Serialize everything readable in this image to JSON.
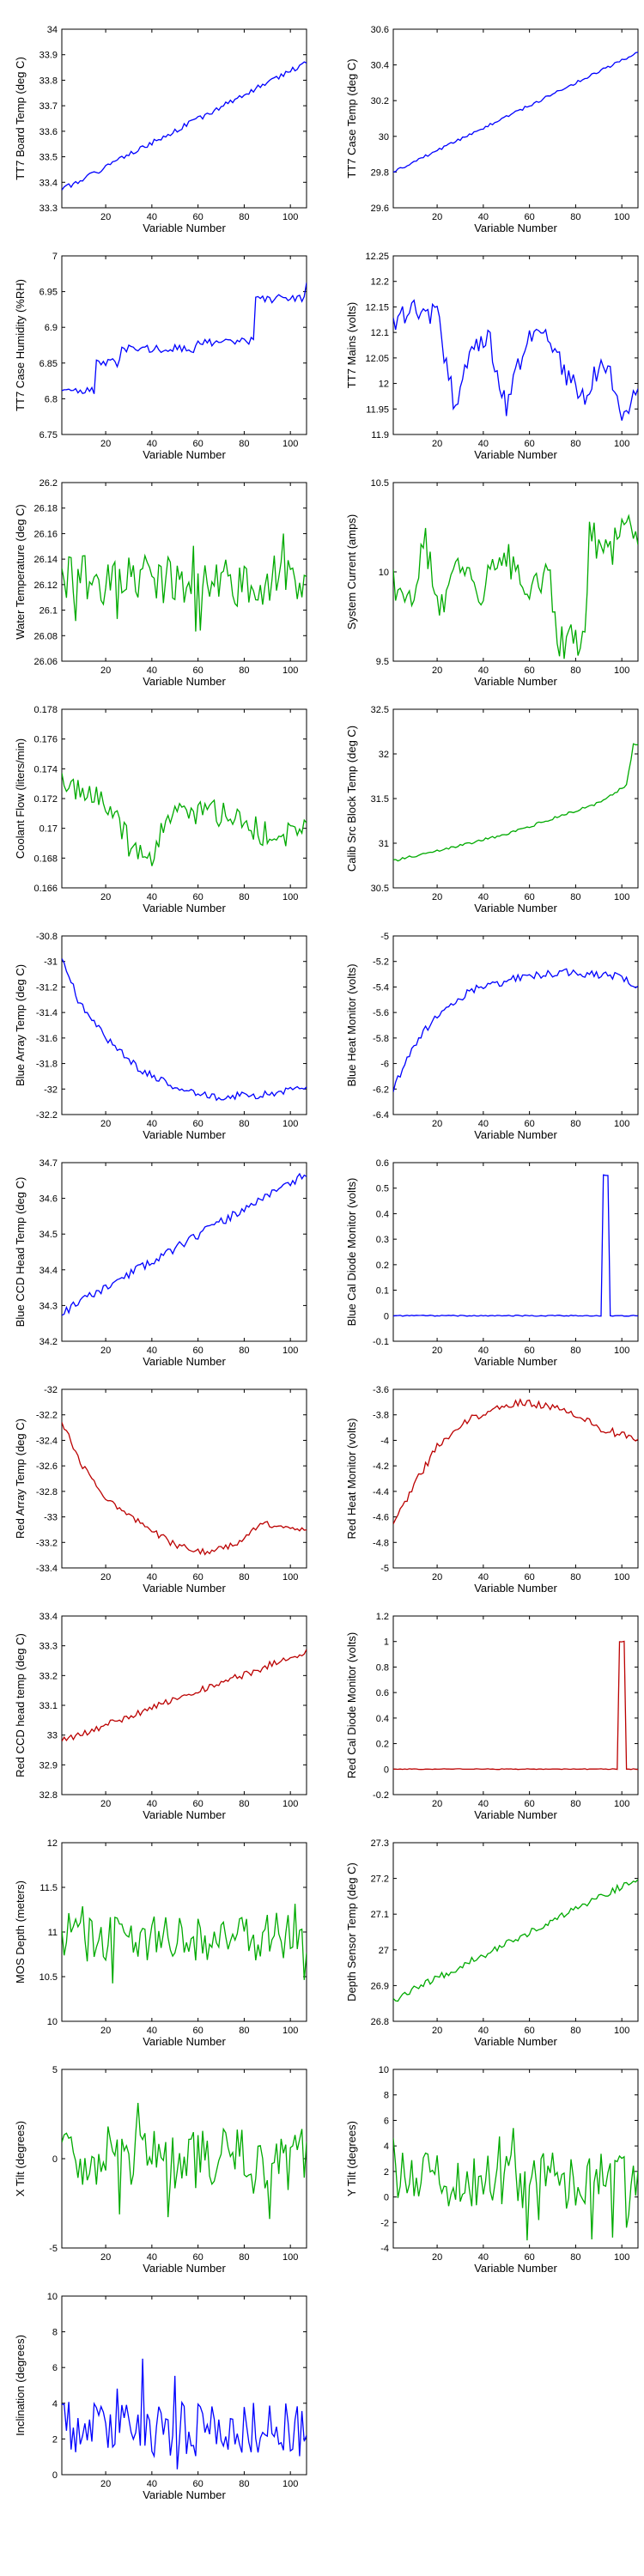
{
  "chart_data": [
    {
      "type": "line",
      "xlabel": "Variable Number",
      "ylabel": "TT7 Board Temp (deg C)",
      "color": "#0000ff",
      "xlim": [
        1,
        107
      ],
      "xticks": [
        20,
        40,
        60,
        80,
        100
      ],
      "ylim": [
        33.3,
        34.0
      ],
      "yticks": [
        "33.3",
        "33.4",
        "33.5",
        "33.6",
        "33.7",
        "33.8",
        "33.9",
        "34"
      ],
      "shape": "ramp",
      "params": {
        "start": 33.37,
        "end": 33.87,
        "noise": 0.01
      },
      "seed": 1
    },
    {
      "type": "line",
      "xlabel": "Variable Number",
      "ylabel": "TT7 Case Temp (deg C)",
      "color": "#0000ff",
      "xlim": [
        1,
        107
      ],
      "xticks": [
        20,
        40,
        60,
        80,
        100
      ],
      "ylim": [
        29.6,
        30.6
      ],
      "yticks": [
        "29.6",
        "29.8",
        "30",
        "30.2",
        "30.4",
        "30.6"
      ],
      "shape": "ramp",
      "params": {
        "start": 29.8,
        "end": 30.47,
        "noise": 0.008
      },
      "seed": 2
    },
    {
      "type": "line",
      "xlabel": "Variable Number",
      "ylabel": "TT7 Case Humidity (%RH)",
      "color": "#0000ff",
      "xlim": [
        1,
        107
      ],
      "xticks": [
        20,
        40,
        60,
        80,
        100
      ],
      "ylim": [
        6.75,
        7.0
      ],
      "yticks": [
        "6.75",
        "6.8",
        "6.85",
        "6.9",
        "6.95",
        "7"
      ],
      "shape": "stairs",
      "params": {
        "knots": [
          [
            1,
            6.81
          ],
          [
            14,
            6.81
          ],
          [
            16,
            6.85
          ],
          [
            27,
            6.87
          ],
          [
            60,
            6.88
          ],
          [
            85,
            6.94
          ],
          [
            103,
            6.94
          ],
          [
            107,
            6.96
          ]
        ],
        "noise": 0.006
      },
      "seed": 3
    },
    {
      "type": "line",
      "xlabel": "Variable Number",
      "ylabel": "TT7 Mains  (volts)",
      "color": "#0000ff",
      "xlim": [
        1,
        107
      ],
      "xticks": [
        20,
        40,
        60,
        80,
        100
      ],
      "ylim": [
        11.9,
        12.25
      ],
      "yticks": [
        "11.9",
        "11.95",
        "12",
        "12.05",
        "12.1",
        "12.15",
        "12.2",
        "12.25"
      ],
      "shape": "path",
      "params": {
        "knots": [
          [
            1,
            12.12
          ],
          [
            12,
            12.15
          ],
          [
            20,
            12.13
          ],
          [
            28,
            11.95
          ],
          [
            34,
            12.05
          ],
          [
            42,
            12.1
          ],
          [
            50,
            11.96
          ],
          [
            58,
            12.08
          ],
          [
            66,
            12.1
          ],
          [
            76,
            12.02
          ],
          [
            84,
            11.98
          ],
          [
            92,
            12.05
          ],
          [
            100,
            11.95
          ],
          [
            107,
            11.97
          ]
        ],
        "noise": 0.025
      },
      "seed": 4
    },
    {
      "type": "line",
      "xlabel": "Variable Number",
      "ylabel": "Water Temperature (deg C)",
      "color": "#00aa00",
      "xlim": [
        1,
        107
      ],
      "xticks": [
        20,
        40,
        60,
        80,
        100
      ],
      "ylim": [
        26.06,
        26.2
      ],
      "yticks": [
        "26.06",
        "26.08",
        "26.1",
        "26.12",
        "26.14",
        "26.16",
        "26.18",
        "26.2"
      ],
      "shape": "noise",
      "params": {
        "mean": 26.123,
        "amp": 0.02
      },
      "seed": 5
    },
    {
      "type": "line",
      "xlabel": "Variable Number",
      "ylabel": "System Current (amps)",
      "color": "#00aa00",
      "xlim": [
        1,
        107
      ],
      "xticks": [
        20,
        40,
        60,
        80,
        100
      ],
      "ylim": [
        9.5,
        10.5
      ],
      "yticks": [
        "9.5",
        "10",
        "10.5"
      ],
      "shape": "path",
      "params": {
        "knots": [
          [
            1,
            9.95
          ],
          [
            8,
            9.85
          ],
          [
            15,
            10.15
          ],
          [
            22,
            9.8
          ],
          [
            30,
            10.05
          ],
          [
            40,
            9.9
          ],
          [
            50,
            10.1
          ],
          [
            60,
            9.85
          ],
          [
            68,
            10.05
          ],
          [
            72,
            9.6
          ],
          [
            84,
            9.62
          ],
          [
            86,
            10.2
          ],
          [
            96,
            10.1
          ],
          [
            100,
            10.35
          ],
          [
            104,
            10.2
          ],
          [
            107,
            10.2
          ]
        ],
        "noise": 0.1
      },
      "seed": 6
    },
    {
      "type": "line",
      "xlabel": "Variable Number",
      "ylabel": "Coolant Flow (liters/min)",
      "color": "#00aa00",
      "xlim": [
        1,
        107
      ],
      "xticks": [
        20,
        40,
        60,
        80,
        100
      ],
      "ylim": [
        0.166,
        0.178
      ],
      "yticks": [
        "0.166",
        "0.168",
        "0.17",
        "0.172",
        "0.174",
        "0.176",
        "0.178"
      ],
      "shape": "path",
      "params": {
        "knots": [
          [
            1,
            0.173
          ],
          [
            20,
            0.172
          ],
          [
            30,
            0.169
          ],
          [
            40,
            0.168
          ],
          [
            50,
            0.172
          ],
          [
            60,
            0.171
          ],
          [
            72,
            0.171
          ],
          [
            85,
            0.17
          ],
          [
            95,
            0.169
          ],
          [
            107,
            0.1705
          ]
        ],
        "noise": 0.0009
      },
      "seed": 7
    },
    {
      "type": "line",
      "xlabel": "Variable Number",
      "ylabel": "Calib Src Block Temp (deg C)",
      "color": "#00aa00",
      "xlim": [
        1,
        107
      ],
      "xticks": [
        20,
        40,
        60,
        80,
        100
      ],
      "ylim": [
        30.5,
        32.5
      ],
      "yticks": [
        "30.5",
        "31",
        "31.5",
        "32",
        "32.5"
      ],
      "shape": "path",
      "params": {
        "knots": [
          [
            1,
            30.8
          ],
          [
            50,
            31.1
          ],
          [
            90,
            31.45
          ],
          [
            102,
            31.65
          ],
          [
            105,
            32.1
          ],
          [
            107,
            32.1
          ]
        ],
        "noise": 0.015
      },
      "seed": 8
    },
    {
      "type": "line",
      "xlabel": "Variable Number",
      "ylabel": "Blue Array Temp (deg C)",
      "color": "#0000ff",
      "xlim": [
        1,
        107
      ],
      "xticks": [
        20,
        40,
        60,
        80,
        100
      ],
      "ylim": [
        -32.2,
        -30.8
      ],
      "yticks": [
        "-32.2",
        "-32",
        "-31.8",
        "-31.6",
        "-31.4",
        "-31.2",
        "-31",
        "-30.8"
      ],
      "shape": "path",
      "params": {
        "knots": [
          [
            1,
            -30.95
          ],
          [
            8,
            -31.3
          ],
          [
            20,
            -31.6
          ],
          [
            35,
            -31.85
          ],
          [
            50,
            -31.98
          ],
          [
            65,
            -32.06
          ],
          [
            85,
            -32.05
          ],
          [
            107,
            -32.0
          ]
        ],
        "noise": 0.03
      },
      "seed": 9
    },
    {
      "type": "line",
      "xlabel": "Variable Number",
      "ylabel": "Blue Heat Monitor (volts)",
      "color": "#0000ff",
      "xlim": [
        1,
        107
      ],
      "xticks": [
        20,
        40,
        60,
        80,
        100
      ],
      "ylim": [
        -6.4,
        -5.0
      ],
      "yticks": [
        "-6.4",
        "-6.2",
        "-6",
        "-5.8",
        "-5.6",
        "-5.4",
        "-5.2",
        "-5"
      ],
      "shape": "path",
      "params": {
        "knots": [
          [
            1,
            -6.2
          ],
          [
            10,
            -5.85
          ],
          [
            20,
            -5.62
          ],
          [
            35,
            -5.42
          ],
          [
            55,
            -5.33
          ],
          [
            75,
            -5.28
          ],
          [
            100,
            -5.32
          ],
          [
            107,
            -5.42
          ]
        ],
        "noise": 0.03
      },
      "seed": 10
    },
    {
      "type": "line",
      "xlabel": "Variable Number",
      "ylabel": "Blue CCD Head Temp (deg C)",
      "color": "#0000ff",
      "xlim": [
        1,
        107
      ],
      "xticks": [
        20,
        40,
        60,
        80,
        100
      ],
      "ylim": [
        34.2,
        34.7
      ],
      "yticks": [
        "34.2",
        "34.3",
        "34.4",
        "34.5",
        "34.6",
        "34.7"
      ],
      "shape": "ramp",
      "params": {
        "start": 34.28,
        "end": 34.67,
        "noise": 0.012
      },
      "seed": 11
    },
    {
      "type": "line",
      "xlabel": "Variable Number",
      "ylabel": "Blue Cal Diode Monitor (volts)",
      "color": "#0000ff",
      "xlim": [
        1,
        107
      ],
      "xticks": [
        20,
        40,
        60,
        80,
        100
      ],
      "ylim": [
        -0.1,
        0.6
      ],
      "yticks": [
        "-0.1",
        "0",
        "0.1",
        "0.2",
        "0.3",
        "0.4",
        "0.5",
        "0.6"
      ],
      "shape": "pulse",
      "params": {
        "base": 0,
        "peak": 0.55,
        "from": 92,
        "to": 94,
        "noise": 0.002
      },
      "seed": 12
    },
    {
      "type": "line",
      "xlabel": "Variable Number",
      "ylabel": "Red Array Temp (deg C)",
      "color": "#bb0000",
      "xlim": [
        1,
        107
      ],
      "xticks": [
        20,
        40,
        60,
        80,
        100
      ],
      "ylim": [
        -33.4,
        -32.0
      ],
      "yticks": [
        "-33.4",
        "-33.2",
        "-33",
        "-32.8",
        "-32.6",
        "-32.4",
        "-32.2",
        "-32"
      ],
      "shape": "path",
      "params": {
        "knots": [
          [
            1,
            -32.25
          ],
          [
            10,
            -32.6
          ],
          [
            20,
            -32.85
          ],
          [
            35,
            -33.05
          ],
          [
            50,
            -33.22
          ],
          [
            65,
            -33.28
          ],
          [
            78,
            -33.2
          ],
          [
            88,
            -33.05
          ],
          [
            107,
            -33.1
          ]
        ],
        "noise": 0.025
      },
      "seed": 13
    },
    {
      "type": "line",
      "xlabel": "Variable Number",
      "ylabel": "Red Heat Monitor (volts)",
      "color": "#bb0000",
      "xlim": [
        1,
        107
      ],
      "xticks": [
        20,
        40,
        60,
        80,
        100
      ],
      "ylim": [
        -5.0,
        -3.6
      ],
      "yticks": [
        "-5",
        "-4.8",
        "-4.6",
        "-4.4",
        "-4.2",
        "-4",
        "-3.8",
        "-3.6"
      ],
      "shape": "path",
      "params": {
        "knots": [
          [
            1,
            -4.65
          ],
          [
            10,
            -4.35
          ],
          [
            20,
            -4.05
          ],
          [
            35,
            -3.82
          ],
          [
            55,
            -3.7
          ],
          [
            75,
            -3.75
          ],
          [
            90,
            -3.9
          ],
          [
            107,
            -4.0
          ]
        ],
        "noise": 0.03
      },
      "seed": 14
    },
    {
      "type": "line",
      "xlabel": "Variable Number",
      "ylabel": "Red CCD head temp (deg C)",
      "color": "#bb0000",
      "xlim": [
        1,
        107
      ],
      "xticks": [
        20,
        40,
        60,
        80,
        100
      ],
      "ylim": [
        32.8,
        33.4
      ],
      "yticks": [
        "32.8",
        "32.9",
        "33",
        "33.1",
        "33.2",
        "33.3",
        "33.4"
      ],
      "shape": "ramp",
      "params": {
        "start": 32.98,
        "end": 33.28,
        "noise": 0.012
      },
      "seed": 15
    },
    {
      "type": "line",
      "xlabel": "Variable Number",
      "ylabel": "Red Cal Diode Monitor (volts)",
      "color": "#bb0000",
      "xlim": [
        1,
        107
      ],
      "xticks": [
        20,
        40,
        60,
        80,
        100
      ],
      "ylim": [
        -0.2,
        1.2
      ],
      "yticks": [
        "-0.2",
        "0",
        "0.2",
        "0.4",
        "0.6",
        "0.8",
        "1",
        "1.2"
      ],
      "shape": "pulse",
      "params": {
        "base": 0,
        "peak": 1.0,
        "from": 99,
        "to": 101,
        "noise": 0.003
      },
      "seed": 16
    },
    {
      "type": "line",
      "xlabel": "Variable Number",
      "ylabel": "MOS Depth   (meters)",
      "color": "#00aa00",
      "xlim": [
        1,
        107
      ],
      "xticks": [
        20,
        40,
        60,
        80,
        100
      ],
      "ylim": [
        10,
        12
      ],
      "yticks": [
        "10",
        "10.5",
        "11",
        "11.5",
        "12"
      ],
      "shape": "noise",
      "params": {
        "mean": 10.95,
        "amp": 0.28
      },
      "seed": 17
    },
    {
      "type": "line",
      "xlabel": "Variable Number",
      "ylabel": "Depth Sensor Temp (deg C)",
      "color": "#00aa00",
      "xlim": [
        1,
        107
      ],
      "xticks": [
        20,
        40,
        60,
        80,
        100
      ],
      "ylim": [
        26.8,
        27.3
      ],
      "yticks": [
        "26.8",
        "26.9",
        "27",
        "27.1",
        "27.2",
        "27.3"
      ],
      "shape": "ramp",
      "params": {
        "start": 26.86,
        "end": 27.2,
        "noise": 0.01
      },
      "seed": 18
    },
    {
      "type": "line",
      "xlabel": "Variable Number",
      "ylabel": "X Tilt  (degrees)",
      "color": "#00aa00",
      "xlim": [
        1,
        107
      ],
      "xticks": [
        20,
        40,
        60,
        80,
        100
      ],
      "ylim": [
        -5,
        5
      ],
      "yticks": [
        "-5",
        "0",
        "5"
      ],
      "shape": "noise",
      "params": {
        "mean": 0,
        "amp": 1.7
      },
      "seed": 19
    },
    {
      "type": "line",
      "xlabel": "Variable Number",
      "ylabel": "Y Tilt  (degrees)",
      "color": "#00aa00",
      "xlim": [
        1,
        107
      ],
      "xticks": [
        20,
        40,
        60,
        80,
        100
      ],
      "ylim": [
        -4,
        10
      ],
      "yticks": [
        "-4",
        "-2",
        "0",
        "2",
        "4",
        "6",
        "8",
        "10"
      ],
      "shape": "noise",
      "params": {
        "mean": 1.3,
        "amp": 2.2
      },
      "seed": 20
    },
    {
      "type": "line",
      "xlabel": "Variable Number",
      "ylabel": "Inclination  (degrees)",
      "color": "#0000ff",
      "xlim": [
        1,
        107
      ],
      "xticks": [
        20,
        40,
        60,
        80,
        100
      ],
      "ylim": [
        0,
        10
      ],
      "yticks": [
        "0",
        "2",
        "4",
        "6",
        "8",
        "10"
      ],
      "shape": "abs",
      "params": {
        "mean": 2.6,
        "amp": 1.6
      },
      "seed": 21
    }
  ]
}
